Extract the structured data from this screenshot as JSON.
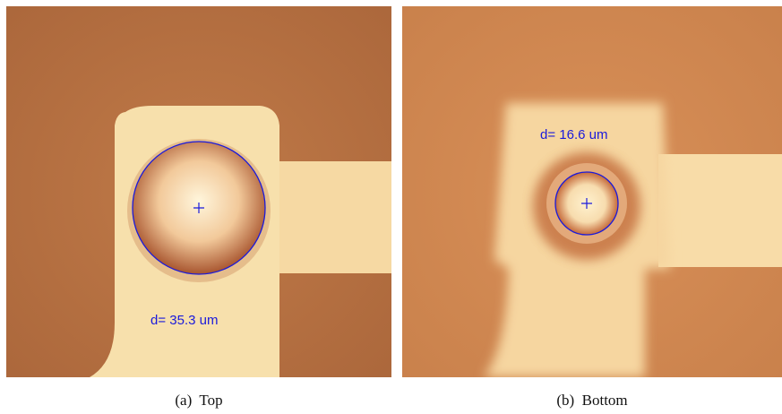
{
  "panels": [
    {
      "annotation": "d=  35.3  um",
      "caption": "(a)  Top"
    },
    {
      "annotation": "d=  16.6  um",
      "caption": "(b)  Bottom"
    }
  ]
}
